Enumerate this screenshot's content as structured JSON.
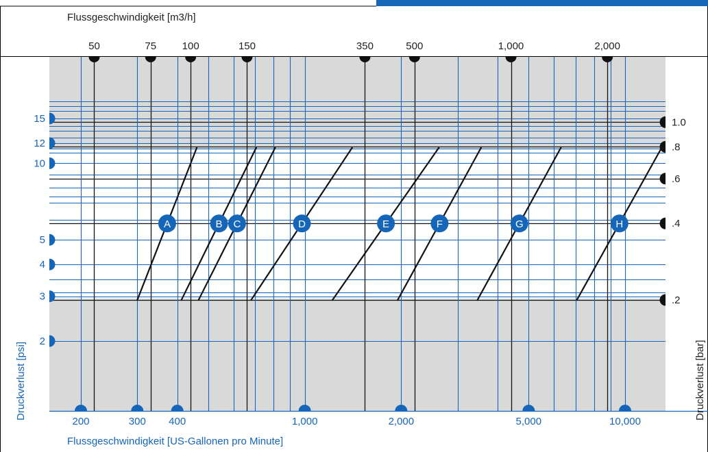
{
  "chart_data": {
    "type": "line",
    "top_axis": {
      "label": "Flussgeschwindigkeit [m3/h]",
      "ticks": [
        {
          "label": "50",
          "value": 50
        },
        {
          "label": "75",
          "value": 75
        },
        {
          "label": "100",
          "value": 100
        },
        {
          "label": "150",
          "value": 150
        },
        {
          "label": "350",
          "value": 350
        },
        {
          "label": "500",
          "value": 500
        },
        {
          "label": "1,000",
          "value": 1000
        },
        {
          "label": "2,000",
          "value": 2000
        }
      ]
    },
    "bottom_axis": {
      "label": "Flussgeschwindigkeit [US-Gallonen pro Minute]",
      "ticks": [
        {
          "label": "200",
          "value": 200
        },
        {
          "label": "300",
          "value": 300
        },
        {
          "label": "400",
          "value": 400
        },
        {
          "label": "1,000",
          "value": 1000
        },
        {
          "label": "2,000",
          "value": 2000
        },
        {
          "label": "5,000",
          "value": 5000
        },
        {
          "label": "10,000",
          "value": 10000
        }
      ]
    },
    "left_axis": {
      "label": "Druckverlust [psi]",
      "ticks": [
        {
          "label": "15",
          "value": 15
        },
        {
          "label": "12",
          "value": 12
        },
        {
          "label": "10",
          "value": 10
        },
        {
          "label": "5",
          "value": 5
        },
        {
          "label": "4",
          "value": 4
        },
        {
          "label": "3",
          "value": 3
        },
        {
          "label": "2",
          "value": 2
        }
      ]
    },
    "right_axis": {
      "label": "Druckverlust [bar]",
      "ticks": [
        {
          "label": "1.0",
          "value": 1.0
        },
        {
          "label": ".8",
          "value": 0.8
        },
        {
          "label": ".6",
          "value": 0.6
        },
        {
          "label": ".4",
          "value": 0.4
        },
        {
          "label": ".2",
          "value": 0.2
        }
      ]
    },
    "x_scale": "log",
    "y_scale": "log",
    "series": [
      {
        "name": "A",
        "marker_psi": 5.8,
        "points": [
          [
            300,
            2.9
          ],
          [
            460,
            11.5
          ]
        ]
      },
      {
        "name": "B",
        "marker_psi": 5.8,
        "points": [
          [
            412,
            2.9
          ],
          [
            705,
            11.5
          ]
        ]
      },
      {
        "name": "C",
        "marker_psi": 5.8,
        "points": [
          [
            466,
            2.9
          ],
          [
            808,
            11.5
          ]
        ]
      },
      {
        "name": "D",
        "marker_psi": 5.8,
        "points": [
          [
            680,
            2.9
          ],
          [
            1405,
            11.5
          ]
        ]
      },
      {
        "name": "E",
        "marker_psi": 5.8,
        "points": [
          [
            1220,
            2.9
          ],
          [
            2620,
            11.5
          ]
        ]
      },
      {
        "name": "F",
        "marker_psi": 5.8,
        "points": [
          [
            1950,
            2.9
          ],
          [
            3550,
            11.5
          ]
        ]
      },
      {
        "name": "G",
        "marker_psi": 5.8,
        "points": [
          [
            3460,
            2.9
          ],
          [
            6300,
            11.5
          ]
        ]
      },
      {
        "name": "H",
        "marker_psi": 5.8,
        "points": [
          [
            7070,
            2.9
          ],
          [
            13000,
            11.5
          ]
        ]
      }
    ]
  }
}
